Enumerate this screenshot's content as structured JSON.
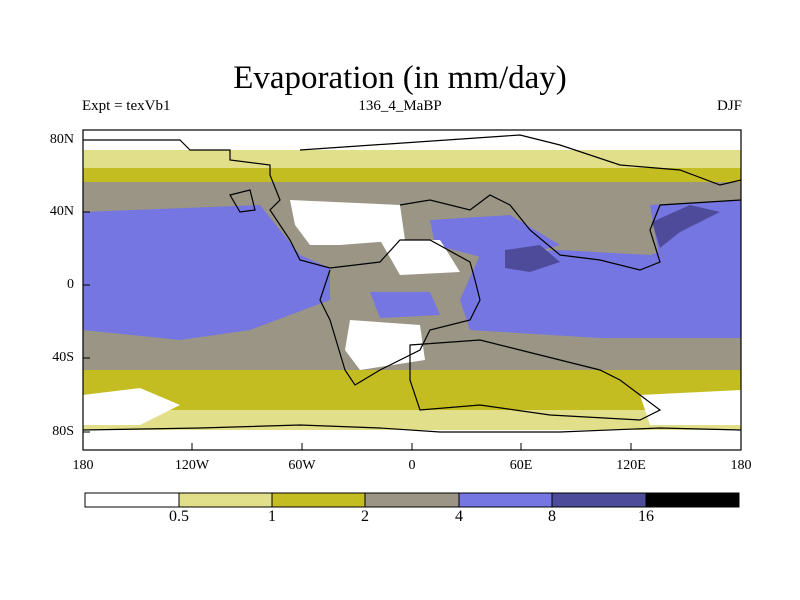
{
  "title": "Evaporation (in mm/day)",
  "subtitle_left": "Expt = texVb1",
  "subtitle_center": "136_4_MaBP",
  "subtitle_right": "DJF",
  "lat_labels": [
    "80N",
    "40N",
    "0",
    "40S",
    "80S"
  ],
  "lon_labels": [
    "180",
    "120W",
    "60W",
    "0",
    "60E",
    "120E",
    "180"
  ],
  "colorbar": {
    "labels": [
      "0.5",
      "1",
      "2",
      "4",
      "8",
      "16"
    ],
    "colors": [
      "#ffffff",
      "#e1df89",
      "#c4bd21",
      "#9a9585",
      "#7676e2",
      "#4d4b9a",
      "#000000"
    ]
  },
  "colors": {
    "zero_to_half": "#ffffff",
    "half_to_one": "#e1df89",
    "one_to_two": "#c4bd21",
    "two_to_four": "#9a9585",
    "four_to_eight": "#7676e2",
    "eight_to_sixteen": "#4d4b9a",
    "above_sixteen": "#000000",
    "coastline": "#000000"
  }
}
